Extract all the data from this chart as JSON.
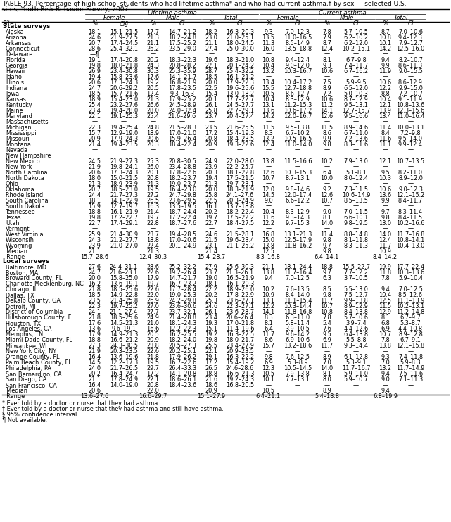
{
  "title_line1": "TABLE 93. Percentage of high school students who had lifetime asthma* and who had current asthma,† by sex — selected U.S.",
  "title_line2": "sites, Youth Risk Behavior Survey, 2007",
  "section_state": "State surveys",
  "section_local": "Local surveys",
  "footnotes": [
    "* Ever told by a doctor or nurse that they had asthma.",
    "† Ever told by a doctor or nurse that they had asthma and still have asthma.",
    "§ 95% confidence interval.",
    "¶ Not available."
  ],
  "state_rows": [
    [
      "Alaska",
      "18.1",
      "15.1–21.5",
      "17.7",
      "14.7–21.2",
      "18.2",
      "16.3–20.3",
      "9.3",
      "7.0–12.3",
      "7.8",
      "5.7–10.5",
      "8.7",
      "7.0–10.6"
    ],
    [
      "Arizona",
      "24.6",
      "21.9–27.5",
      "21.3",
      "18.2–24.8",
      "23.0",
      "21.0–25.1",
      "13.5",
      "11.0–16.5",
      "7.9",
      "6.2–10.2",
      "10.8",
      "9.4–12.3"
    ],
    [
      "Arkansas",
      "20.7",
      "17.4–24.5",
      "21.1",
      "17.5–25.2",
      "21.1",
      "18.0–24.5",
      "11.3",
      "8.5–14.9",
      "8.7",
      "6.2–12.0",
      "10.1",
      "7.9–12.7"
    ],
    [
      "Connecticut",
      "28.6",
      "25.4–32.1",
      "26.2",
      "23.5–29.0",
      "27.4",
      "25.0–30.0",
      "16.0",
      "13.5–18.8",
      "12.4",
      "10.2–15.1",
      "14.2",
      "12.5–16.0"
    ],
    [
      "Delaware",
      "—¶",
      "—",
      "—",
      "—",
      "—",
      "—",
      "—",
      "—",
      "—",
      "—",
      "—",
      "—"
    ],
    [
      "Florida",
      "19.1",
      "17.4–20.8",
      "20.2",
      "18.3–22.3",
      "19.6",
      "18.3–21.0",
      "10.8",
      "9.4–12.4",
      "8.1",
      "6.7–9.8",
      "9.4",
      "8.2–10.7"
    ],
    [
      "Georgia",
      "19.8",
      "18.0–21.8",
      "24.3",
      "20.8–28.2",
      "22.1",
      "20.1–24.2",
      "10.4",
      "9.0–12.0",
      "9.3",
      "7.4–11.7",
      "9.9",
      "8.6–11.3"
    ],
    [
      "Hawaii",
      "26.9",
      "23.4–30.8",
      "30.3",
      "25.3–35.9",
      "28.7",
      "25.4–32.2",
      "13.2",
      "10.3–16.7",
      "10.6",
      "6.7–16.2",
      "11.9",
      "9.0–15.5"
    ],
    [
      "Idaho",
      "19.4",
      "15.8–23.6",
      "17.6",
      "14.1–21.7",
      "18.5",
      "16.1–21.2",
      "—",
      "—",
      "—",
      "—",
      "—",
      "—"
    ],
    [
      "Illinois",
      "20.6",
      "17.3–24.3",
      "19.2",
      "16.8–21.9",
      "20.0",
      "17.9–22.3",
      "13.4",
      "10.4–17.2",
      "7.5",
      "5.9–9.5",
      "10.6",
      "8.6–12.9"
    ],
    [
      "Indiana",
      "24.7",
      "20.6–29.2",
      "20.5",
      "17.8–23.5",
      "22.5",
      "19.6–25.6",
      "15.5",
      "12.7–18.8",
      "8.9",
      "6.5–12.0",
      "12.2",
      "9.9–15.0"
    ],
    [
      "Iowa",
      "18.5",
      "15.7–21.6",
      "12.4",
      "9.3–16.3",
      "15.4",
      "13.0–18.2",
      "10.5",
      "8.6–12.7",
      "7.2",
      "5.0–10.3",
      "8.8",
      "7.2–10.7"
    ],
    [
      "Kansas",
      "18.9",
      "15.4–23.0",
      "21.3",
      "17.9–25.2",
      "20.1",
      "17.7–22.7",
      "10.4",
      "8.3–12.9",
      "10.6",
      "8.7–12.9",
      "10.4",
      "9.1–11.9"
    ],
    [
      "Kentucky",
      "25.4",
      "23.2–27.6",
      "26.6",
      "24.5–28.9",
      "26.1",
      "24.5–27.7",
      "13.1",
      "11.2–15.3",
      "11.2",
      "9.5–13.1",
      "12.1",
      "10.8–13.6"
    ],
    [
      "Maine",
      "23.4",
      "19.4–28.0",
      "28.0",
      "24.0–32.4",
      "25.8",
      "22.7–29.1",
      "13.6",
      "10.6–17.2",
      "14.1",
      "12.7–15.7",
      "13.9",
      "12.3–15.6"
    ],
    [
      "Maryland",
      "22.1",
      "19.1–25.3",
      "25.4",
      "21.6–29.6",
      "23.7",
      "20.4–27.4",
      "14.2",
      "12.0–16.7",
      "12.6",
      "9.5–16.6",
      "13.4",
      "11.0–16.4"
    ],
    [
      "Massachusetts",
      "—",
      "—",
      "—",
      "—",
      "—",
      "—",
      "—",
      "—",
      "—",
      "—",
      "—",
      "—"
    ],
    [
      "Michigan",
      "22.3",
      "19.4–25.4",
      "24.8",
      "21.5–28.3",
      "23.5",
      "21.6–25.5",
      "11.5",
      "9.5–13.8",
      "11.5",
      "8.9–14.6",
      "11.4",
      "10.0–13.1"
    ],
    [
      "Mississippi",
      "15.7",
      "12.9–19.0",
      "18.9",
      "17.0–21.0",
      "17.2",
      "15.4–19.3",
      "8.3",
      "6.7–10.2",
      "8.6",
      "6.7–11.0",
      "8.4",
      "7.2–9.8"
    ],
    [
      "Missouri",
      "20.9",
      "17.9–24.3",
      "20.6",
      "15.9–26.4",
      "20.8",
      "18.4–23.5",
      "13.2",
      "10.5–16.5",
      "9.9",
      "7.2–13.6",
      "11.6",
      "9.5–14.0"
    ],
    [
      "Montana",
      "21.4",
      "19.4–23.5",
      "20.3",
      "18.4–22.4",
      "20.9",
      "19.3–22.6",
      "12.4",
      "11.0–14.0",
      "9.8",
      "8.3–11.6",
      "11.1",
      "9.9–12.4"
    ],
    [
      "Nevada",
      "—",
      "—",
      "—",
      "—",
      "—",
      "—",
      "—",
      "—",
      "—",
      "—",
      "—",
      "—"
    ],
    [
      "New Hampshire",
      "—",
      "—",
      "—",
      "—",
      "—",
      "—",
      "—",
      "—",
      "—",
      "—",
      "—",
      "—"
    ],
    [
      "New Mexico",
      "24.5",
      "21.9–27.3",
      "25.3",
      "20.8–30.5",
      "24.9",
      "22.0–28.0",
      "13.8",
      "11.5–16.6",
      "10.2",
      "7.9–13.0",
      "12.1",
      "10.7–13.5"
    ],
    [
      "New York",
      "21.9",
      "19.8–24.1",
      "26.0",
      "23.4–28.8",
      "23.9",
      "22.2–25.7",
      "—",
      "—",
      "—",
      "—",
      "—",
      "—"
    ],
    [
      "North Carolina",
      "20.6",
      "17.3–24.3",
      "20.1",
      "17.8–22.6",
      "20.3",
      "18.1–22.8",
      "12.6",
      "10.3–15.3",
      "6.4",
      "5.1–8.1",
      "9.5",
      "8.2–11.0"
    ],
    [
      "North Dakota",
      "18.0",
      "15.0–21.5",
      "20.8",
      "18.2–23.7",
      "19.4",
      "17.5–21.5",
      "10.7",
      "8.7–13.1",
      "10.0",
      "8.0–12.4",
      "10.3",
      "8.9–12.0"
    ],
    [
      "Ohio",
      "21.3",
      "18.9–23.9",
      "21.3",
      "19.0–23.7",
      "21.3",
      "19.7–23.1",
      "—",
      "—",
      "—",
      "—",
      "—",
      "—"
    ],
    [
      "Oklahoma",
      "20.7",
      "18.5–23.0",
      "19.5",
      "16.4–23.0",
      "20.0",
      "18.3–21.9",
      "12.0",
      "9.8–14.6",
      "9.2",
      "7.3–11.5",
      "10.6",
      "9.0–12.3"
    ],
    [
      "Rhode Island",
      "24.4",
      "21.7–27.3",
      "27.2",
      "24.7–29.8",
      "25.8",
      "24.1–27.6",
      "14.5",
      "12.0–17.4",
      "12.6",
      "10.6–14.9",
      "13.6",
      "12.1–15.2"
    ],
    [
      "South Carolina",
      "18.1",
      "14.1–22.9",
      "26.5",
      "23.6–29.5",
      "22.5",
      "20.3–24.9",
      "9.0",
      "6.6–12.2",
      "10.7",
      "8.5–13.5",
      "9.9",
      "8.4–11.7"
    ],
    [
      "South Dakota",
      "15.9",
      "12.7–19.7",
      "16.3",
      "13.5–19.5",
      "16.1",
      "13.7–18.8",
      "—",
      "—",
      "—",
      "—",
      "—",
      "—"
    ],
    [
      "Tennessee",
      "18.8",
      "16.1–21.9",
      "21.4",
      "18.7–24.4",
      "20.2",
      "18.2–22.4",
      "10.4",
      "8.3–12.9",
      "9.0",
      "7.0–11.5",
      "9.7",
      "8.3–11.4"
    ],
    [
      "Texas",
      "19.8",
      "17.2–22.7",
      "19.7",
      "17.2–22.4",
      "19.7",
      "17.5–22.2",
      "11.6",
      "9.3–14.3",
      "8.1",
      "6.6–10.1",
      "9.8",
      "8.4–11.5"
    ],
    [
      "Utah",
      "22.7",
      "17.4–29.1",
      "22.8",
      "18.7–27.6",
      "22.7",
      "18.4–27.5",
      "12.2",
      "9.7–15.3",
      "14.0",
      "9.8–19.5",
      "13.0",
      "10.2–16.6"
    ],
    [
      "Vermont",
      "—",
      "—",
      "—",
      "—",
      "—",
      "—",
      "—",
      "—",
      "—",
      "—",
      "—",
      "—"
    ],
    [
      "West Virginia",
      "25.9",
      "21.4–30.9",
      "23.7",
      "19.4–28.5",
      "24.6",
      "21.5–28.1",
      "16.8",
      "13.1–21.3",
      "11.4",
      "8.8–14.8",
      "14.0",
      "11.7–16.8"
    ],
    [
      "Wisconsin",
      "24.3",
      "21.2–27.7",
      "18.8",
      "17.0–20.6",
      "21.5",
      "19.6–23.4",
      "15.0",
      "12.5–17.9",
      "9.8",
      "8.1–11.8",
      "12.4",
      "10.8–14.1"
    ],
    [
      "Wyoming",
      "23.9",
      "21.0–27.0",
      "22.4",
      "20.1–24.9",
      "23.1",
      "21.1–25.2",
      "13.8",
      "11.8–16.2",
      "9.7",
      "8.3–11.3",
      "11.7",
      "10.4–13.0"
    ]
  ],
  "state_median": [
    "  Median",
    "21.1",
    "",
    "21.3",
    "",
    "21.4",
    "",
    "12.5",
    "",
    "9.8",
    "",
    "10.9",
    ""
  ],
  "state_range": [
    "  Range",
    "15.7–28.6",
    "",
    "12.4–30.3",
    "",
    "15.4–28.7",
    "",
    "8.3–16.8",
    "",
    "6.4–14.1",
    "",
    "8.4–14.2",
    ""
  ],
  "local_rows": [
    [
      "Baltimore, MD",
      "27.6",
      "24.4–31.1",
      "28.6",
      "25.2–32.2",
      "27.9",
      "25.6–30.3",
      "21.1",
      "18.1–24.4",
      "18.8",
      "15.5–22.7",
      "19.9",
      "17.7–22.4"
    ],
    [
      "Boston, MA",
      "24.7",
      "21.6–28.1",
      "22.6",
      "19.2–26.4",
      "23.7",
      "21.3–26.1",
      "13.8",
      "11.7–16.4",
      "9.7",
      "7.7–12.2",
      "11.8",
      "10.3–13.6"
    ],
    [
      "Broward County, FL",
      "20.0",
      "15.8–25.0",
      "17.9",
      "14.7–21.7",
      "19.0",
      "16.5–21.9",
      "9.4",
      "7.0–12.5",
      "6.3",
      "3.7–10.5",
      "7.8",
      "5.9–10.4"
    ],
    [
      "Charlotte-Mecklenburg, NC",
      "16.2",
      "13.6–19.1",
      "19.7",
      "16.7–23.2",
      "18.1",
      "16.1–20.3",
      "—",
      "—",
      "—",
      "—",
      "—",
      "—"
    ],
    [
      "Chicago, IL",
      "21.8",
      "18.5–25.6",
      "22.6",
      "17.7–28.4",
      "22.2",
      "18.9–26.0",
      "10.2",
      "7.6–13.5",
      "8.5",
      "5.5–13.0",
      "9.4",
      "7.0–12.5"
    ],
    [
      "Dallas, TX",
      "18.5",
      "14.9–22.8",
      "22.0",
      "19.0–25.3",
      "20.2",
      "17.8–22.9",
      "10.9",
      "8.4–14.0",
      "9.8",
      "7.5–12.7",
      "10.4",
      "8.5–12.6"
    ],
    [
      "DeKalb County, GA",
      "23.5",
      "21.4–25.8",
      "26.9",
      "24.2–29.8",
      "25.3",
      "23.6–27.1",
      "13.1",
      "11.1–15.4",
      "11.7",
      "9.9–13.8",
      "12.5",
      "11.1–13.9"
    ],
    [
      "Detroit, MI",
      "22.3",
      "19.7–25.2",
      "27.0",
      "23.6–30.6",
      "24.6",
      "22.3–27.1",
      "12.2",
      "10.3–14.4",
      "10.7",
      "8.9–12.9",
      "11.5",
      "10.2–13.1"
    ],
    [
      "District of Columbia",
      "24.1",
      "21.1–27.4",
      "27.7",
      "23.7–32.1",
      "26.1",
      "23.6–28.7",
      "14.1",
      "11.8–16.8",
      "10.8",
      "8.4–13.8",
      "12.9",
      "11.2–14.8"
    ],
    [
      "Hillsborough County, FL",
      "21.8",
      "18.5–25.6",
      "24.9",
      "21.4–28.8",
      "23.4",
      "20.6–26.4",
      "8.3",
      "6.3–11.0",
      "7.8",
      "5.7–10.6",
      "8.1",
      "6.7–9.7"
    ],
    [
      "Houston, TX",
      "17.6",
      "14.5–21.3",
      "21.0",
      "18.1–24.3",
      "19.3",
      "17.0–21.8",
      "8.1",
      "5.8–11.4",
      "5.4",
      "3.9–7.4",
      "6.8",
      "5.3–8.7"
    ],
    [
      "Los Angeles, CA",
      "13.6",
      "9.6–19.1",
      "16.6",
      "12.2–22.3",
      "15.1",
      "11.4–19.6",
      "6.4",
      "3.9–10.5",
      "7.6",
      "4.4–12.6",
      "6.9",
      "4.4–10.8"
    ],
    [
      "Memphis, TN",
      "17.9",
      "14.9–21.3",
      "20.5",
      "16.2–25.5",
      "19.2",
      "16.3–22.5",
      "11.7",
      "9.6–14.2",
      "9.5",
      "6.4–13.8",
      "10.7",
      "8.9–12.8"
    ],
    [
      "Miami-Dade County, FL",
      "18.8",
      "16.6–21.2",
      "20.9",
      "18.2–24.0",
      "19.8",
      "18.0–21.7",
      "8.6",
      "6.9–10.6",
      "6.9",
      "5.5–8.8",
      "7.8",
      "6.7–9.1"
    ],
    [
      "Milwaukee, WI",
      "27.3",
      "24.3–30.5",
      "23.8",
      "20.5–27.3",
      "25.5",
      "23.4–27.9",
      "15.7",
      "13.2–18.6",
      "11.7",
      "9.3–14.4",
      "13.8",
      "12.1–15.8"
    ],
    [
      "New York City, NY",
      "21.9",
      "20.3–23.5",
      "22.6",
      "20.2–25.1",
      "22.1",
      "20.9–23.5",
      "—",
      "—",
      "—",
      "—",
      "—",
      "—"
    ],
    [
      "Orange County, FL",
      "16.4",
      "13.6–19.6",
      "21.8",
      "17.9–26.2",
      "19.1",
      "16.3–22.2",
      "9.8",
      "7.6–12.5",
      "8.9",
      "6.1–12.8",
      "9.3",
      "7.4–11.8"
    ],
    [
      "Palm Beach County, FL",
      "14.5",
      "12.2–17.3",
      "19.5",
      "16.7–22.6",
      "17.2",
      "15.4–19.2",
      "6.9",
      "5.3–8.9",
      "7.0",
      "5.3–9.1",
      "7.0",
      "5.9–8.3"
    ],
    [
      "Philadelphia, PA",
      "24.0",
      "21.7–26.5",
      "29.7",
      "26.4–33.3",
      "26.5",
      "24.6–28.6",
      "12.3",
      "10.5–14.5",
      "14.0",
      "11.7–16.7",
      "13.2",
      "11.7–14.9"
    ],
    [
      "San Bernardino, CA",
      "20.2",
      "16.4–24.7",
      "17.2",
      "14.1–20.8",
      "18.8",
      "16.6–21.3",
      "10.5",
      "7.9–13.8",
      "8.1",
      "5.9–11.0",
      "9.4",
      "7.5–11.6"
    ],
    [
      "San Diego, CA",
      "21.1",
      "17.8–24.9",
      "22.1",
      "18.6–26.1",
      "21.6",
      "19.2–24.3",
      "10.1",
      "7.7–13.1",
      "8.0",
      "5.9–10.7",
      "9.0",
      "7.1–11.3"
    ],
    [
      "San Francisco, CA",
      "16.4",
      "14.0–19.0",
      "20.8",
      "18.4–23.6",
      "18.6",
      "16.8–20.5",
      "—",
      "—",
      "—",
      "—",
      "—",
      "—"
    ]
  ],
  "local_median": [
    "  Median",
    "20.6",
    "",
    "22.0",
    "",
    "20.9",
    "",
    "10.5",
    "",
    "8.9",
    "",
    "9.4",
    ""
  ],
  "local_range": [
    "  Range",
    "13.6–27.6",
    "",
    "16.6–29.7",
    "",
    "15.1–27.9",
    "",
    "6.4–21.1",
    "",
    "5.4–18.8",
    "",
    "6.8–19.9",
    ""
  ]
}
